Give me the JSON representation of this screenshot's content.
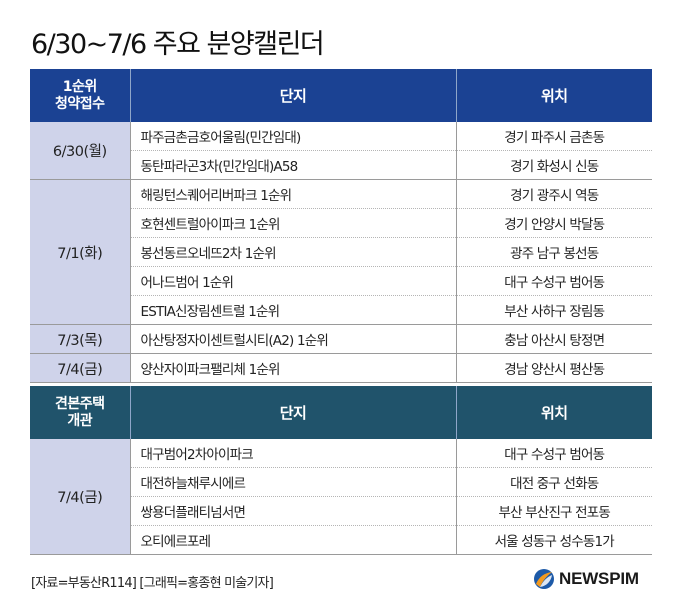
{
  "title": "6/30~7/6 주요 분양캘린더",
  "section1": {
    "headers": [
      "1순위\n청약접수",
      "단지",
      "위치"
    ],
    "groups": [
      {
        "date": "6/30(월)",
        "rows": [
          {
            "name": "파주금촌금호어울림(민간임대)",
            "location": "경기 파주시 금촌동"
          },
          {
            "name": "동탄파라곤3차(민간임대)A58",
            "location": "경기 화성시 신동"
          }
        ]
      },
      {
        "date": "7/1(화)",
        "rows": [
          {
            "name": "해링턴스퀘어리버파크 1순위",
            "location": "경기 광주시 역동"
          },
          {
            "name": "호현센트럴아이파크 1순위",
            "location": "경기 안양시 박달동"
          },
          {
            "name": "봉선동르오네뜨2차 1순위",
            "location": "광주 남구 봉선동"
          },
          {
            "name": "어나드범어 1순위",
            "location": "대구 수성구 범어동"
          },
          {
            "name": "ESTIA신장림센트럴 1순위",
            "location": "부산 사하구 장림동"
          }
        ]
      },
      {
        "date": "7/3(목)",
        "rows": [
          {
            "name": "아산탕정자이센트럴시티(A2) 1순위",
            "location": "충남 아산시 탕정면"
          }
        ]
      },
      {
        "date": "7/4(금)",
        "rows": [
          {
            "name": "양산자이파크팰리체 1순위",
            "location": "경남 양산시 평산동"
          }
        ]
      }
    ]
  },
  "section2": {
    "headers": [
      "견본주택\n개관",
      "단지",
      "위치"
    ],
    "groups": [
      {
        "date": "7/4(금)",
        "rows": [
          {
            "name": "대구범어2차아이파크",
            "location": "대구 수성구 범어동"
          },
          {
            "name": "대전하늘채루시에르",
            "location": "대전 중구 선화동"
          },
          {
            "name": "쌍용더플래티넘서면",
            "location": "부산 부산진구 전포동"
          },
          {
            "name": "오티에르포레",
            "location": "서울 성동구 성수동1가"
          }
        ]
      }
    ]
  },
  "footer": {
    "source": "[자료=부동산R114] [그래픽=홍종현 미술기자]",
    "logo_text": "NEWSPIM"
  },
  "colors": {
    "header1": "#1b4293",
    "header2": "#20536b",
    "date_cell": "#cfd3ea",
    "logo_orange": "#f29a1f",
    "logo_blue": "#1d5aa8"
  }
}
